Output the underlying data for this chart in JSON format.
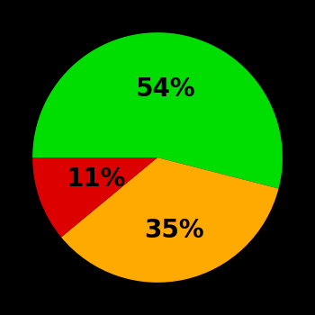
{
  "slices": [
    54,
    35,
    11
  ],
  "colors": [
    "#00dd00",
    "#ffaa00",
    "#dd0000"
  ],
  "labels": [
    "54%",
    "35%",
    "11%"
  ],
  "background_color": "#000000",
  "text_color": "#000000",
  "label_fontsize": 20,
  "label_fontweight": "bold",
  "figsize": [
    3.5,
    3.5
  ],
  "dpi": 100,
  "label_radii": [
    0.55,
    0.6,
    0.52
  ]
}
